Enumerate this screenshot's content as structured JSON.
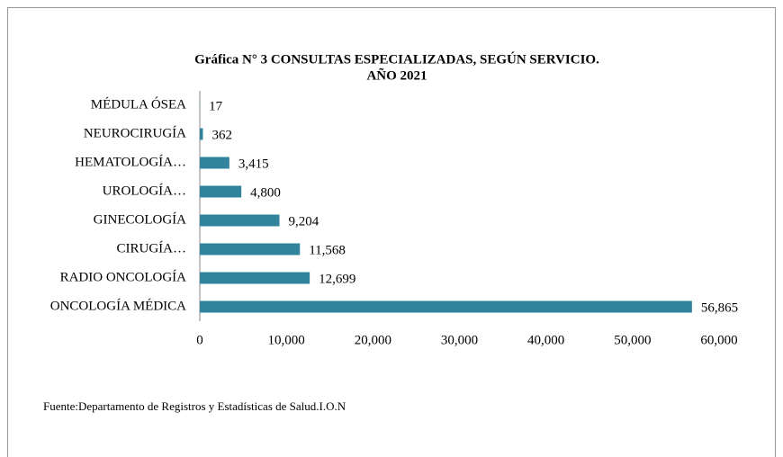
{
  "chart_data": {
    "type": "barh",
    "title_lines": [
      "Gráfica N° 3 CONSULTAS ESPECIALIZADAS, SEGÚN SERVICIO.",
      "AÑO 2021"
    ],
    "categories": [
      "MÉDULA ÓSEA",
      "NEUROCIRUGÍA",
      "HEMATOLOGÍA…",
      "UROLOGÍA…",
      "GINECOLOGÍA",
      "CIRUGÍA…",
      "RADIO ONCOLOGÍA",
      "ONCOLOGÍA MÉDICA"
    ],
    "values": [
      17,
      362,
      3415,
      4800,
      9204,
      11568,
      12699,
      56865
    ],
    "value_labels": [
      "17",
      "362",
      "3,415",
      "4,800",
      "9,204",
      "11,568",
      "12,699",
      "56,865"
    ],
    "color": "#31849b",
    "xlim": [
      0,
      60000
    ],
    "xticks": [
      0,
      {
        "value": 10000,
        "label": "10,000"
      },
      {
        "value": 20000,
        "label": "20,000"
      },
      {
        "value": 30000,
        "label": "30,000"
      },
      {
        "value": 40000,
        "label": "40,000"
      },
      {
        "value": 50000,
        "label": "50,000"
      },
      {
        "value": 60000,
        "label": "60,000"
      }
    ],
    "grid": false,
    "source": "Fuente:Departamento de Registros  y Estadísticas de  Salud.I.O.N"
  }
}
